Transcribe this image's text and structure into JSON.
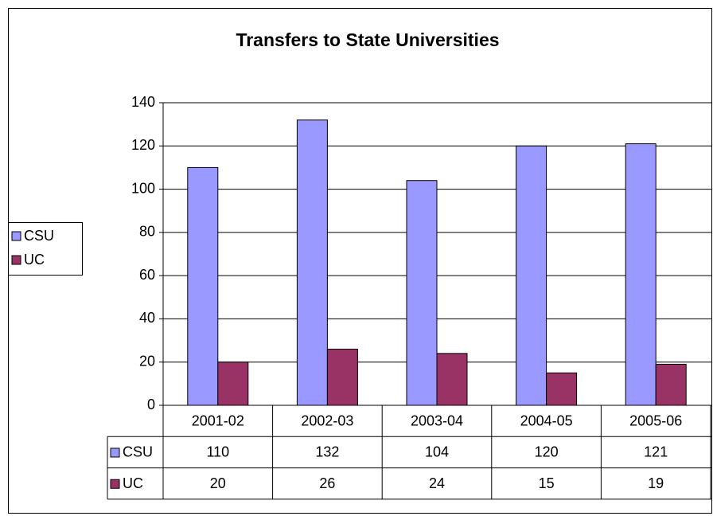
{
  "chart_data": {
    "type": "bar",
    "title": "Transfers to State Universities",
    "categories": [
      "2001-02",
      "2002-03",
      "2003-04",
      "2004-05",
      "2005-06"
    ],
    "series": [
      {
        "name": "CSU",
        "color": "#9999ff",
        "values": [
          110,
          132,
          104,
          120,
          121
        ]
      },
      {
        "name": "UC",
        "color": "#993366",
        "values": [
          20,
          26,
          24,
          15,
          19
        ]
      }
    ],
    "ylim": [
      0,
      140
    ],
    "yticks": [
      0,
      20,
      40,
      60,
      80,
      100,
      120,
      140
    ],
    "grid": true,
    "legend": "left"
  }
}
